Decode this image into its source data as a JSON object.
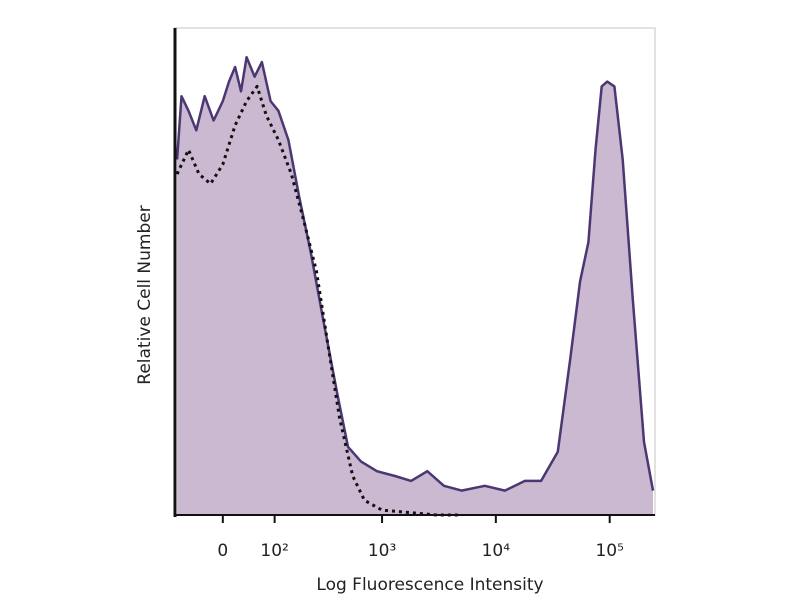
{
  "chart_data": {
    "type": "area",
    "x_label": "Log Fluorescence Intensity",
    "y_label": "Relative Cell Number",
    "x_scale": "biexponential",
    "xlim": [
      -90,
      250000
    ],
    "ylim": [
      0,
      100
    ],
    "xticks": [
      0,
      {
        "value": 100,
        "label": "10²"
      },
      {
        "value": 1000,
        "label": "10³"
      },
      {
        "value": 10000,
        "label": "10⁴"
      },
      {
        "value": 100000,
        "label": "10⁵"
      }
    ],
    "series": [
      {
        "color": "#4b3873",
        "fill": "#cbb8d1",
        "line_style": "solid",
        "x": [
          -85,
          -75,
          -60,
          -45,
          -30,
          -15,
          0,
          10,
          20,
          30,
          40,
          55,
          70,
          90,
          110,
          140,
          180,
          230,
          300,
          400,
          500,
          650,
          900,
          1300,
          1800,
          2500,
          3500,
          5000,
          8000,
          12000,
          18000,
          25000,
          35000,
          45000,
          55000,
          65000,
          75000,
          85000,
          95000,
          110000,
          130000,
          160000,
          200000,
          240000
        ],
        "values": [
          73,
          86,
          83,
          79,
          86,
          81,
          85,
          89,
          92,
          87,
          94,
          90,
          93,
          85,
          83,
          77,
          65,
          54,
          40,
          25,
          14,
          11,
          9,
          8,
          7,
          9,
          6,
          5,
          6,
          5,
          7,
          7,
          13,
          32,
          48,
          56,
          75,
          88,
          89,
          88,
          73,
          44,
          15,
          5
        ]
      },
      {
        "color": "#111111",
        "line_style": "dotted",
        "x": [
          -85,
          -60,
          -40,
          -20,
          0,
          20,
          40,
          60,
          80,
          110,
          150,
          200,
          260,
          330,
          420,
          550,
          700,
          1000,
          3000,
          5000
        ],
        "values": [
          70,
          75,
          70,
          68,
          72,
          80,
          85,
          88,
          82,
          77,
          70,
          60,
          50,
          35,
          20,
          8,
          3,
          1,
          0,
          0
        ]
      }
    ]
  }
}
